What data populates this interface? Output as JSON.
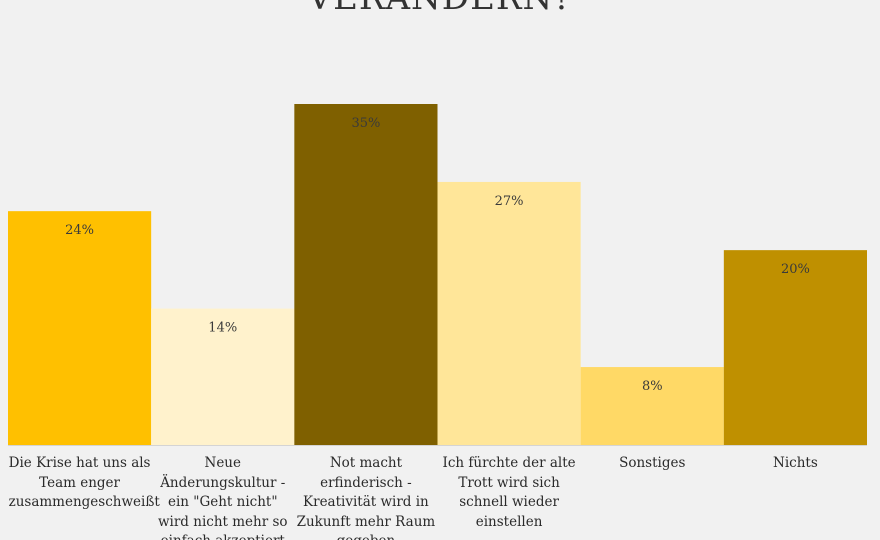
{
  "chart_data": {
    "type": "bar",
    "title": "VERÄNDERN?",
    "xlabel": "",
    "ylabel": "",
    "ylim": [
      0,
      35
    ],
    "grid": false,
    "legend": "none",
    "categories": [
      "Die Krise hat uns als Team enger zusammengeschweißt",
      "Neue Änderungskultur - ein \"Geht nicht\" wird nicht mehr so einfach akzeptiert",
      "Not macht erfinderisch - Kreativität wird in Zukunft mehr Raum gegeben",
      "Ich fürchte der alte Trott wird sich schnell wieder einstellen",
      "Sonstiges",
      "Nichts"
    ],
    "values": [
      24,
      14,
      35,
      27,
      8,
      20
    ],
    "data_labels": [
      "24%",
      "14%",
      "35%",
      "27%",
      "8%",
      "20%"
    ],
    "colors": [
      "#ffc000",
      "#fff2cc",
      "#7f6000",
      "#ffe699",
      "#ffd966",
      "#bf9000"
    ]
  }
}
